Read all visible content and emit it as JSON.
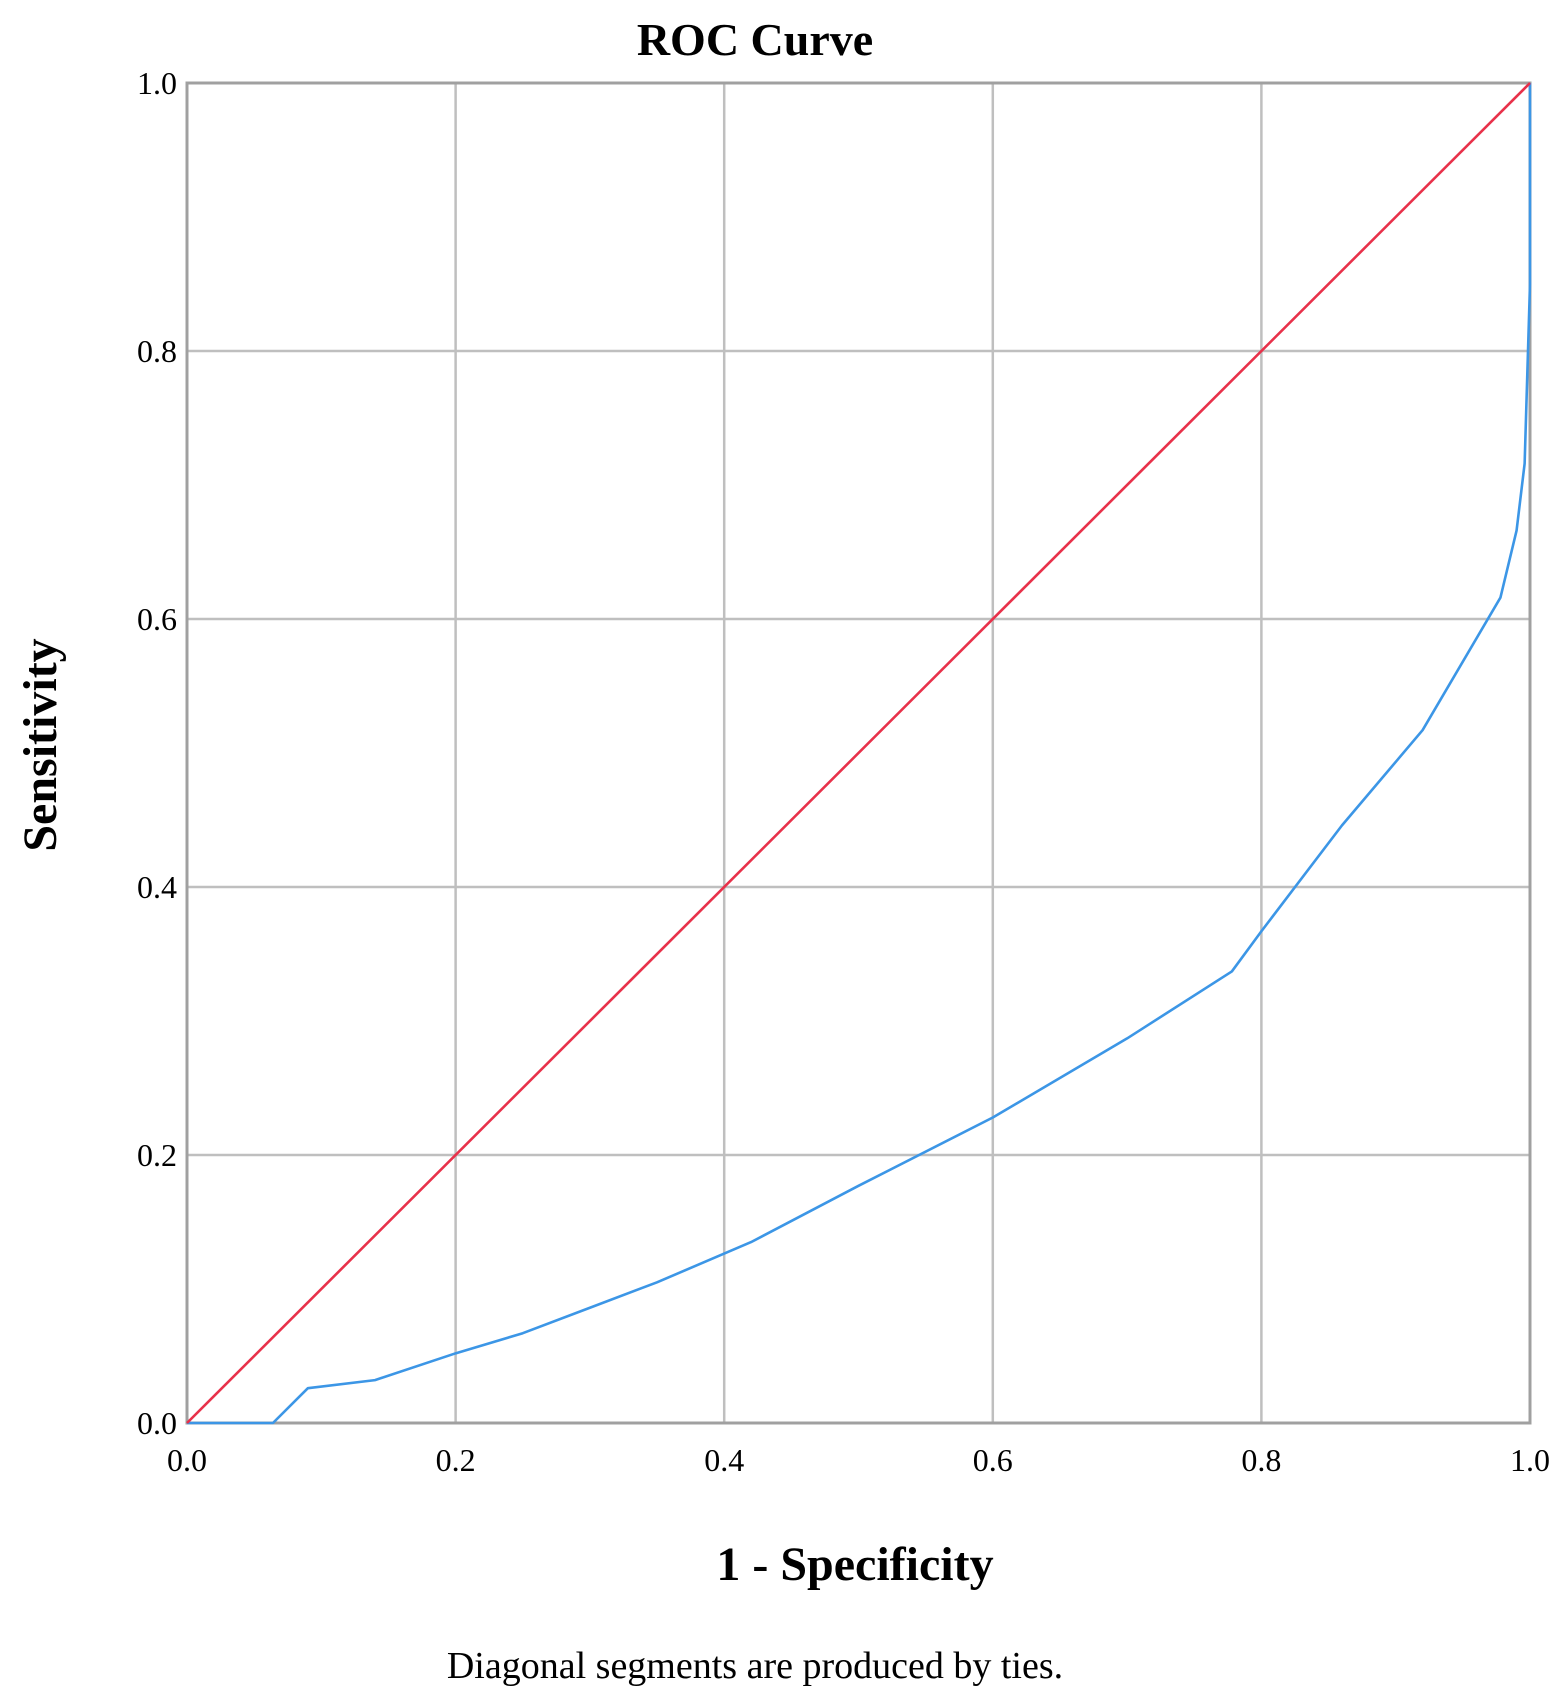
{
  "chart_data": {
    "type": "line",
    "title": "ROC Curve",
    "xlabel": "1 - Specificity",
    "ylabel": "Sensitivity",
    "note": "Diagonal segments are produced by ties.",
    "xlim": [
      0,
      1
    ],
    "ylim": [
      0,
      1
    ],
    "xticks": [
      "0.0",
      "0.2",
      "0.4",
      "0.6",
      "0.8",
      "1.0"
    ],
    "yticks": [
      "0.0",
      "0.2",
      "0.4",
      "0.6",
      "0.8",
      "1.0"
    ],
    "grid": true,
    "series": [
      {
        "color": "#3c96e6",
        "x": [
          0.0,
          0.064,
          0.09,
          0.14,
          0.2,
          0.25,
          0.3,
          0.35,
          0.42,
          0.5,
          0.6,
          0.7,
          0.778,
          0.8,
          0.86,
          0.92,
          0.978,
          0.99,
          0.996,
          1.0,
          1.0
        ],
        "y": [
          0.0,
          0.0,
          0.026,
          0.032,
          0.052,
          0.067,
          0.086,
          0.105,
          0.135,
          0.177,
          0.228,
          0.287,
          0.337,
          0.367,
          0.446,
          0.517,
          0.616,
          0.666,
          0.716,
          0.85,
          1.0
        ]
      },
      {
        "color": "#e8314a",
        "x": [
          0.0,
          1.0
        ],
        "y": [
          0.0,
          1.0
        ]
      }
    ]
  }
}
